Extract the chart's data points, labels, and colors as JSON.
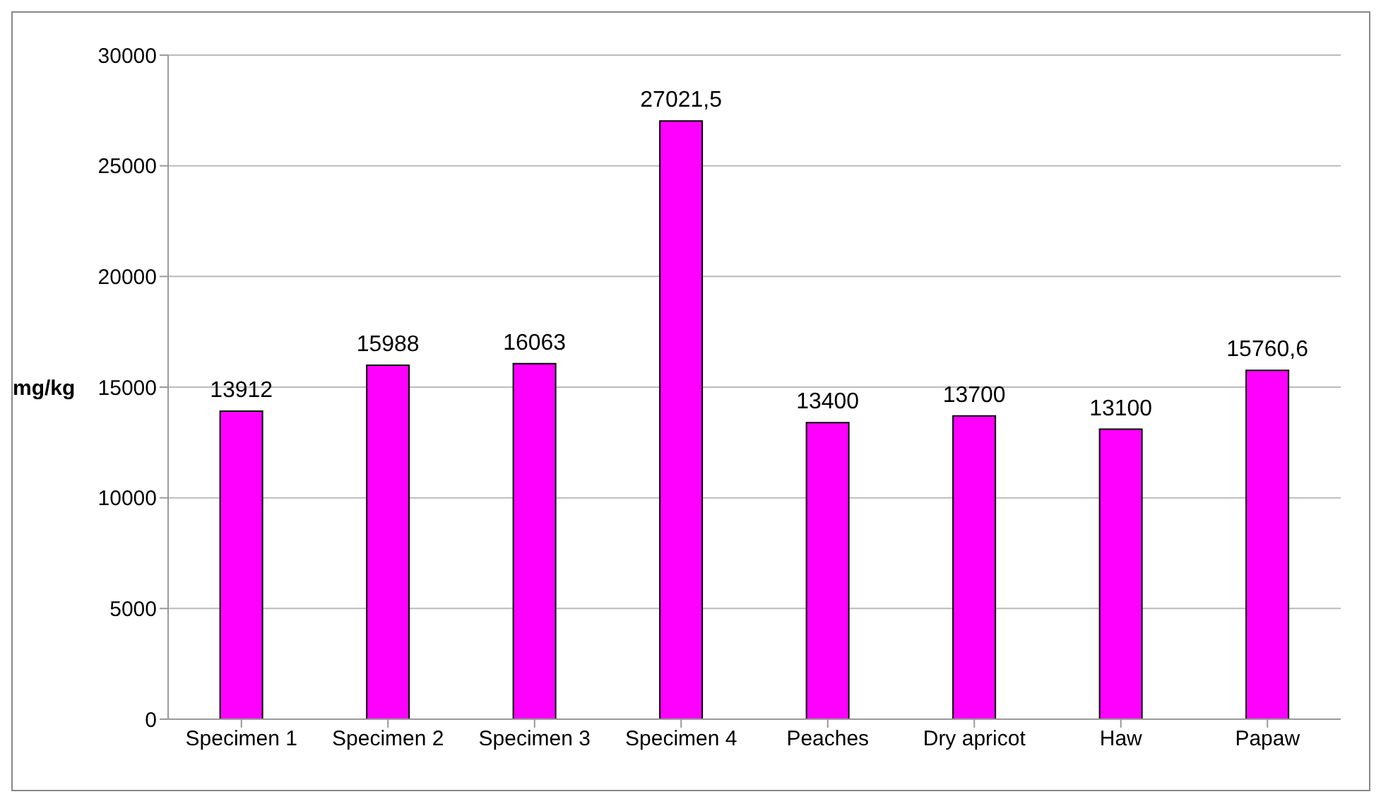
{
  "chart_data": {
    "type": "bar",
    "ylabel": "mg/kg",
    "categories": [
      "Specimen 1",
      "Specimen 2",
      "Specimen 3",
      "Specimen 4",
      "Peaches",
      "Dry apricot",
      "Haw",
      "Papaw"
    ],
    "values": [
      13912,
      15988,
      16063,
      27021.5,
      13400,
      13700,
      13100,
      15760.6
    ],
    "value_labels": [
      "13912",
      "15988",
      "16063",
      "27021,5",
      "13400",
      "13700",
      "13100",
      "15760,6"
    ],
    "color": "#ff00ff",
    "ylim": [
      0,
      30000
    ],
    "yticks": [
      0,
      5000,
      10000,
      15000,
      20000,
      25000,
      30000
    ],
    "grid": "y",
    "legend": false
  }
}
